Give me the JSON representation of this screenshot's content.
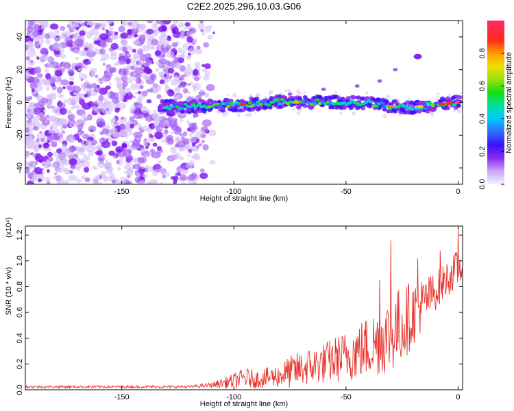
{
  "title": "C2E2.2025.296.10.03.G06",
  "chart_data": [
    {
      "type": "heatmap",
      "title": "C2E2.2025.296.10.03.G06",
      "xlabel": "Height of straight line (km)",
      "ylabel": "Frequency (Hz)",
      "xlim": [
        -193,
        2
      ],
      "ylim": [
        -50,
        50
      ],
      "x_ticks": [
        -150,
        -100,
        -50,
        0
      ],
      "y_ticks": [
        -40,
        -20,
        0,
        20,
        40
      ],
      "colorbar": {
        "label": "Normalized spectral amplitude",
        "range": [
          0,
          1
        ],
        "ticks": [
          0.0,
          0.2,
          0.4,
          0.6,
          0.8
        ],
        "tick_labels": [
          "0.0",
          "0.2",
          "0.4",
          "0.6",
          "0.8"
        ]
      },
      "band": {
        "description": "Main signal track",
        "x": [
          -133,
          -120,
          -110,
          -100,
          -90,
          -80,
          -70,
          -60,
          -50,
          -40,
          -30,
          -20,
          -10,
          0
        ],
        "y": [
          -2.5,
          -2.5,
          -2,
          -1.5,
          -1,
          0.5,
          0,
          0.5,
          0,
          -0.5,
          -2.5,
          -3,
          -1.5,
          0
        ]
      },
      "streak": {
        "x": [
          -75,
          -60,
          -45,
          -35,
          -28,
          -18
        ],
        "y": [
          5,
          8,
          10,
          13,
          20,
          28
        ]
      }
    },
    {
      "type": "line",
      "xlabel": "Height of straight line (km)",
      "ylabel": "SNR (10 * v/v)",
      "y_scale_label": "(x10⁴)",
      "xlim": [
        -193,
        2
      ],
      "ylim": [
        0,
        1.27
      ],
      "x_ticks": [
        -150,
        -100,
        -50,
        0
      ],
      "y_ticks": [
        0.0,
        0.2,
        0.4,
        0.6,
        0.8,
        1.0,
        1.2
      ],
      "y_tick_labels": [
        "0.0",
        "0.2",
        "0.4",
        "0.6",
        "0.8",
        "1.0",
        "1.2"
      ],
      "color": "#e8302a",
      "envelope": {
        "x": [
          -193,
          -150,
          -120,
          -110,
          -100,
          -95,
          -90,
          -80,
          -75,
          -70,
          -60,
          -50,
          -40,
          -30,
          -25,
          -20,
          -15,
          -10,
          -5,
          0,
          2
        ],
        "baseline": [
          0.02,
          0.02,
          0.02,
          0.03,
          0.05,
          0.07,
          0.06,
          0.08,
          0.1,
          0.12,
          0.16,
          0.2,
          0.26,
          0.34,
          0.42,
          0.52,
          0.62,
          0.72,
          0.82,
          0.9,
          0.92
        ],
        "amplitude": [
          0.02,
          0.02,
          0.02,
          0.04,
          0.12,
          0.16,
          0.14,
          0.18,
          0.26,
          0.28,
          0.32,
          0.4,
          0.5,
          0.6,
          0.62,
          0.5,
          0.4,
          0.3,
          0.28,
          0.3,
          0.2
        ]
      },
      "peaks": [
        {
          "x": -30,
          "y": 1.16
        },
        {
          "x": -35,
          "y": 0.85
        },
        {
          "x": -18,
          "y": 1.02
        },
        {
          "x": -8,
          "y": 1.08
        },
        {
          "x": 0,
          "y": 1.25
        }
      ]
    }
  ]
}
